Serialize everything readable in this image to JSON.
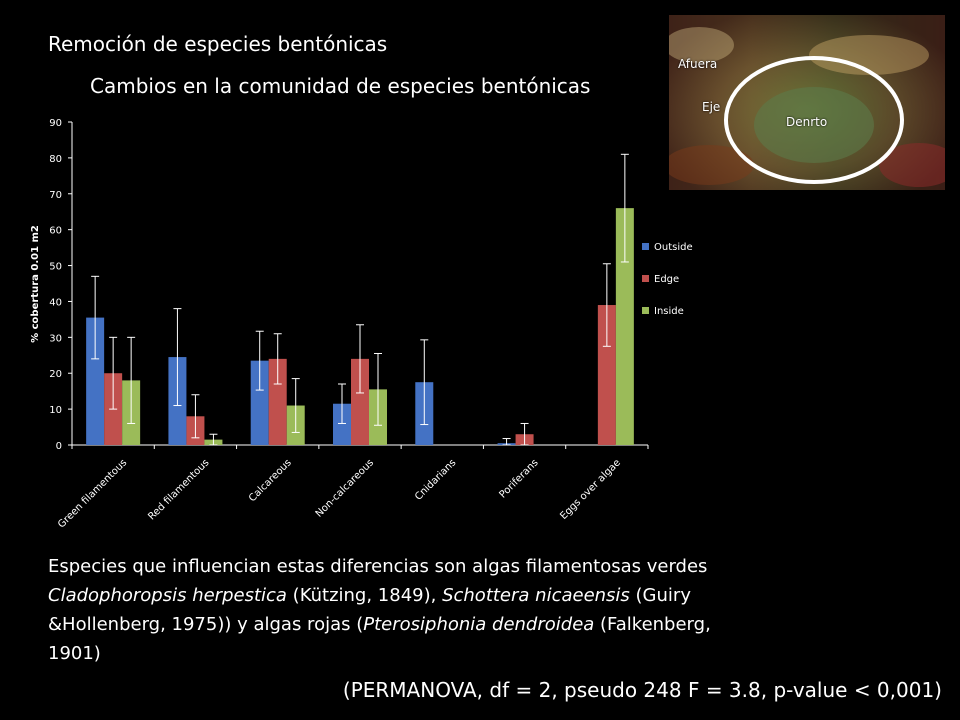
{
  "slide": {
    "title": "Remoción de especies bentónicas",
    "body_parts": [
      "Especies que influencian estas diferencias son algas filamentosas verdes ",
      "Cladophoropsis herpestica",
      " (Kützing, 1849), ",
      "Schottera nicaeensis",
      " (Guiry &Hollenberg, 1975)) y algas rojas (",
      "Pterosiphonia dendroidea",
      " (Falkenberg, 1901)"
    ],
    "stats": "(PERMANOVA, df = 2, pseudo 248 F = 3.8, p-value < 0,001)"
  },
  "photo": {
    "labels": {
      "outside": "Afuera",
      "edge": "Eje",
      "inside": "Denrto"
    },
    "ring_color": "#ffffff"
  },
  "chart_data": {
    "type": "bar",
    "title": "Cambios en la comunidad de especies bentónicas",
    "xlabel": "",
    "ylabel": "% cobertura 0.01 m2",
    "ylim": [
      0,
      90
    ],
    "yticks": [
      0,
      10,
      20,
      30,
      40,
      50,
      60,
      70,
      80,
      90
    ],
    "grid": false,
    "legend_position": "right",
    "categories": [
      "Green filamentous",
      "Red filamentous",
      "Calcareous",
      "Non-calcareous",
      "Cnidarians",
      "Poriferans",
      "Eggs over algae"
    ],
    "series": [
      {
        "name": "Outside",
        "color": "#4472C4",
        "values": [
          35.5,
          24.5,
          23.5,
          11.5,
          17.5,
          0.5,
          0
        ],
        "errors": [
          11.5,
          13.5,
          8.2,
          5.5,
          11.8,
          1.3,
          0
        ]
      },
      {
        "name": "Edge",
        "color": "#C0504D",
        "values": [
          20,
          8,
          24,
          24,
          0,
          3,
          39
        ],
        "errors": [
          10,
          6,
          7,
          9.5,
          0,
          3,
          11.5
        ]
      },
      {
        "name": "Inside",
        "color": "#9BBB59",
        "values": [
          18,
          1.5,
          11,
          15.5,
          0,
          0,
          66
        ],
        "errors": [
          12,
          1.5,
          7.5,
          10,
          0,
          0,
          15
        ]
      }
    ]
  }
}
